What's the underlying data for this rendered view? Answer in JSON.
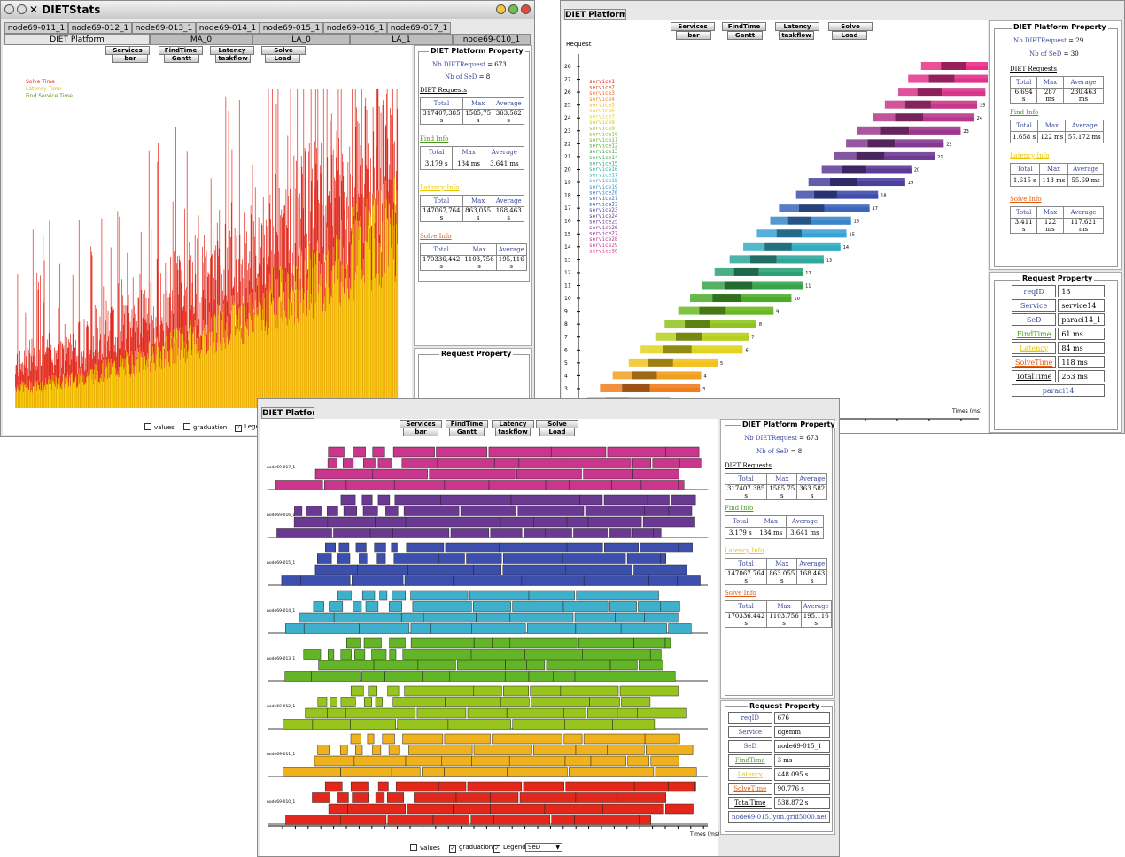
{
  "win1": {
    "title": "DIETStats",
    "tabs_top": [
      "node69-011_1",
      "node69-012_1",
      "node69-013_1",
      "node69-014_1",
      "node69-015_1",
      "node69-016_1",
      "node69-017_1"
    ],
    "tabs_bottom": [
      "DIET Platform",
      "MA_0",
      "LA_0",
      "LA_1",
      "node69-010_1"
    ],
    "chart_legend": {
      "solve": "Solve Time",
      "latency": "Latency Time",
      "find": "Find Service Time"
    },
    "checks": {
      "values": "values",
      "graduation": "graduation",
      "legend": "Legend"
    }
  },
  "toolbar": {
    "services": "Services",
    "findtime": "FindTime",
    "latency": "Latency",
    "solve": "Solve",
    "bar": "bar",
    "gantt": "Gantt",
    "taskflow": "taskflow",
    "load": "Load"
  },
  "property": {
    "header": "DIET Platform Property",
    "nb_req_label": "Nb DIETRequest",
    "eq": "=",
    "nb_sed_label": "Nb of SeD",
    "col_total": "Total",
    "col_max": "Max",
    "col_average": "Average",
    "diet_requests": "DIET Requests",
    "find_info": "Find Info",
    "latency_info": "Latency Info",
    "solve_info": "Solve Info"
  },
  "p1": {
    "nb_req": "673",
    "nb_sed": "8",
    "dr": [
      "317407,385 s",
      "1585,75 s",
      "363,582 s"
    ],
    "fi": [
      "3,179 s",
      "134 ms",
      "3,641 ms"
    ],
    "li": [
      "147067,764 s",
      "863,055 s",
      "168,463 s"
    ],
    "si": [
      "170336,442 s",
      "1103,756 s",
      "195,116 s"
    ]
  },
  "p2": {
    "nb_req": "29",
    "nb_sed": "30",
    "dr": [
      "6.694 s",
      "287 ms",
      "230.463 ms"
    ],
    "fi": [
      "1.658 s",
      "122 ms",
      "57.172 ms"
    ],
    "li": [
      "1.615 s",
      "113 ms",
      "55.69 ms"
    ],
    "si": [
      "3.411 s",
      "122 ms",
      "117.621 ms"
    ]
  },
  "p3": {
    "nb_req": "673",
    "nb_sed": "8",
    "dr": [
      "317407.385 s",
      "1585.75 s",
      "363.582 s"
    ],
    "fi": [
      "3.179 s",
      "134 ms",
      "3.641 ms"
    ],
    "li": [
      "147067.764 s",
      "863.055 s",
      "168.463 s"
    ],
    "si": [
      "170336.442 s",
      "1103.756 s",
      "195.116 s"
    ]
  },
  "request_property": {
    "header": "Request Property",
    "labels": {
      "reqid": "reqID",
      "service": "Service",
      "sed": "SeD",
      "findtime": "FindTime",
      "latency": "Latency",
      "solvetime": "SolveTime",
      "totaltime": "TotalTime"
    },
    "r2": {
      "reqid": "13",
      "service": "service14",
      "sed": "paraci14_1",
      "findtime": "61 ms",
      "latency": "84 ms",
      "solvetime": "118 ms",
      "totaltime": "263 ms",
      "host": "paraci14"
    },
    "r3": {
      "reqid": "676",
      "service": "dgemm",
      "sed": "node69-015_1",
      "findtime": "3 ms",
      "latency": "448.095 s",
      "solvetime": "90.776 s",
      "totaltime": "538.872 s",
      "host": "node69-015.lyon.grid5000.net"
    }
  },
  "win2": {
    "tab": "DIET Platform",
    "y_title": "Request",
    "x_title": "Times (ms)",
    "services": [
      "service1",
      "service2",
      "service3",
      "service4",
      "service5",
      "service6",
      "service7",
      "service8",
      "service9",
      "service10",
      "service11",
      "service12",
      "service13",
      "service14",
      "service15",
      "service16",
      "service17",
      "service18",
      "service19",
      "service20",
      "service21",
      "service22",
      "service23",
      "service24",
      "service25",
      "service26",
      "service27",
      "service28",
      "service29",
      "service30"
    ],
    "ticks": [
      "28",
      "27",
      "26",
      "25",
      "24",
      "23",
      "22",
      "21",
      "20",
      "19",
      "18",
      "17",
      "16",
      "15",
      "14",
      "13",
      "12",
      "11",
      "10",
      "9",
      "8",
      "7",
      "6",
      "5",
      "4",
      "3",
      "2",
      "1"
    ]
  },
  "win3": {
    "tab": "DIET Platform",
    "x_title": "Times (ms)",
    "rows": [
      "node69-017_1",
      "node69-016_1",
      "node69-015_1",
      "node69-014_1",
      "node69-013_1",
      "node69-012_1",
      "node69-011_1",
      "node69-010_1"
    ],
    "dropdown": "SeD"
  },
  "chart_data": [
    {
      "type": "bar",
      "title": "",
      "series": [
        {
          "name": "Solve Time"
        },
        {
          "name": "Latency Time"
        },
        {
          "name": "Find Service Time"
        }
      ]
    },
    {
      "type": "bar",
      "xlabel": "Times (ms)",
      "ylabel": "Request",
      "categories": [
        "1",
        "2",
        "3",
        "4",
        "5",
        "6",
        "7",
        "8",
        "9",
        "10",
        "11",
        "12",
        "13",
        "14",
        "15",
        "16",
        "17",
        "18",
        "19",
        "20",
        "21",
        "22",
        "23",
        "24",
        "25",
        "26",
        "27",
        "28"
      ]
    },
    {
      "type": "bar",
      "xlabel": "Times (ms)",
      "categories": [
        "node69-017_1",
        "node69-016_1",
        "node69-015_1",
        "node69-014_1",
        "node69-013_1",
        "node69-012_1",
        "node69-011_1",
        "node69-010_1"
      ]
    }
  ],
  "colors": {
    "solve": "#e3281b",
    "latency": "#f2e000",
    "find": "#7ab51d"
  }
}
